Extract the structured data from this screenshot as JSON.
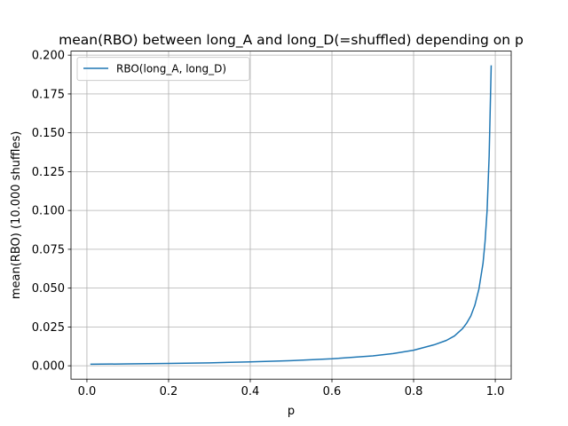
{
  "chart_data": {
    "type": "line",
    "title": "mean(RBO) between long_A and long_D(=shuffled) depending on p",
    "xlabel": "p",
    "ylabel": "mean(RBO) (10.000 shuffles)",
    "xlim": [
      -0.039,
      1.039
    ],
    "ylim": [
      -0.0086,
      0.2026
    ],
    "xticks": [
      0.0,
      0.2,
      0.4,
      0.6,
      0.8,
      1.0
    ],
    "xtick_labels": [
      "0.0",
      "0.2",
      "0.4",
      "0.6",
      "0.8",
      "1.0"
    ],
    "yticks": [
      0.0,
      0.025,
      0.05,
      0.075,
      0.1,
      0.125,
      0.15,
      0.175,
      0.2
    ],
    "ytick_labels": [
      "0.000",
      "0.025",
      "0.050",
      "0.075",
      "0.100",
      "0.125",
      "0.150",
      "0.175",
      "0.200"
    ],
    "grid": true,
    "legend_position": "upper-left",
    "series": [
      {
        "name": "RBO(long_A, long_D)",
        "color": "#1f77b4",
        "x": [
          0.01,
          0.1,
          0.2,
          0.3,
          0.4,
          0.5,
          0.6,
          0.7,
          0.75,
          0.8,
          0.85,
          0.88,
          0.9,
          0.92,
          0.93,
          0.94,
          0.95,
          0.96,
          0.97,
          0.975,
          0.98,
          0.985,
          0.99
        ],
        "values": [
          0.001,
          0.0012,
          0.0015,
          0.0019,
          0.0025,
          0.0033,
          0.0045,
          0.0064,
          0.0079,
          0.01,
          0.0135,
          0.0163,
          0.0192,
          0.024,
          0.0275,
          0.032,
          0.039,
          0.0495,
          0.066,
          0.08,
          0.1,
          0.135,
          0.193
        ]
      }
    ]
  }
}
